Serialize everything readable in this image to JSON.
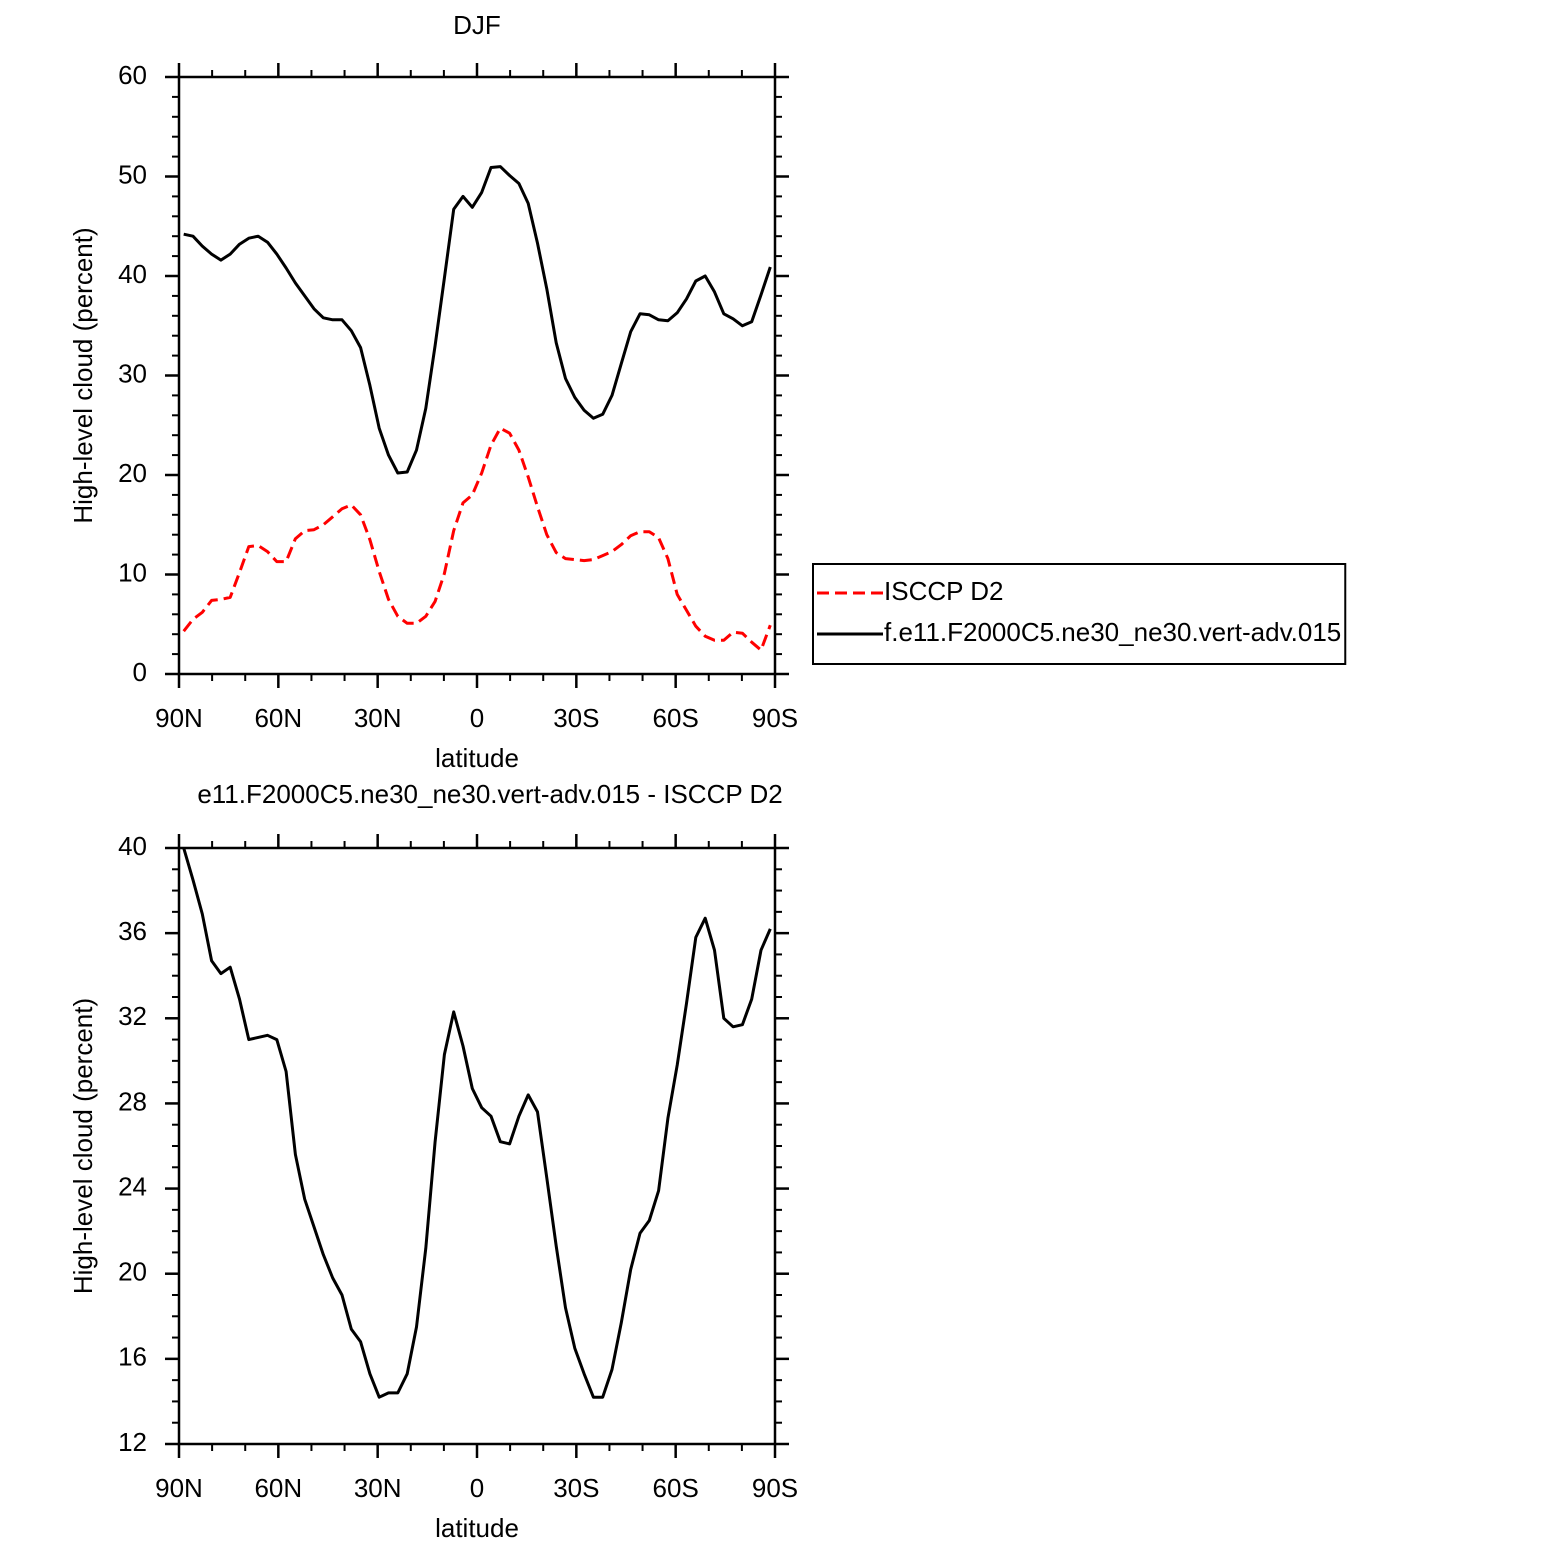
{
  "chart_data": [
    {
      "type": "line",
      "title": "DJF",
      "xlabel": "latitude",
      "ylabel": "High-level cloud (percent)",
      "x": [
        88.59,
        85.78,
        82.97,
        80.16,
        77.34,
        74.53,
        71.72,
        68.91,
        66.09,
        63.28,
        60.47,
        57.66,
        54.84,
        52.03,
        49.22,
        46.41,
        43.59,
        40.78,
        37.97,
        35.16,
        32.34,
        29.53,
        26.72,
        23.91,
        21.09,
        18.28,
        15.47,
        12.66,
        9.84,
        7.03,
        4.22,
        1.41,
        -1.41,
        -4.22,
        -7.03,
        -9.84,
        -12.66,
        -15.47,
        -18.28,
        -21.09,
        -23.91,
        -26.72,
        -29.53,
        -32.34,
        -35.16,
        -37.97,
        -40.78,
        -43.59,
        -46.41,
        -49.22,
        -52.03,
        -54.84,
        -57.66,
        -60.47,
        -63.28,
        -66.09,
        -68.91,
        -71.72,
        -74.53,
        -77.34,
        -80.16,
        -82.97,
        -85.78,
        -88.59
      ],
      "series": [
        {
          "name": "ISCCP D2",
          "color": "#ff0000",
          "dashed": true,
          "values": [
            4.3,
            5.5,
            6.2,
            7.4,
            7.5,
            7.7,
            10.2,
            12.8,
            12.9,
            12.3,
            11.3,
            11.3,
            13.6,
            14.4,
            14.5,
            15.0,
            15.8,
            16.6,
            17.0,
            16.0,
            13.5,
            10.3,
            7.5,
            5.8,
            5.1,
            5.1,
            5.8,
            7.3,
            10.1,
            14.4,
            17.2,
            18.0,
            20.2,
            23.0,
            24.7,
            24.2,
            22.5,
            19.8,
            16.8,
            14.0,
            12.2,
            11.6,
            11.5,
            11.4,
            11.5,
            11.9,
            12.3,
            13.0,
            13.9,
            14.3,
            14.3,
            13.7,
            11.6,
            8.0,
            6.4,
            4.8,
            3.8,
            3.4,
            3.4,
            4.2,
            4.1,
            3.2,
            2.4,
            4.9
          ]
        },
        {
          "name": "f.e11.F2000C5.ne30_ne30.vert-adv.015",
          "color": "#000000",
          "dashed": false,
          "values": [
            44.2,
            44.0,
            43.0,
            42.2,
            41.6,
            42.2,
            43.2,
            43.8,
            44.0,
            43.4,
            42.2,
            40.8,
            39.3,
            38.0,
            36.7,
            35.8,
            35.6,
            35.6,
            34.5,
            32.8,
            29.0,
            24.7,
            22.0,
            20.2,
            20.3,
            22.5,
            26.7,
            33.0,
            39.8,
            46.7,
            48.0,
            46.9,
            48.4,
            50.9,
            51.0,
            50.1,
            49.3,
            47.3,
            43.3,
            38.7,
            33.3,
            29.7,
            27.8,
            26.5,
            25.7,
            26.1,
            28.0,
            31.2,
            34.4,
            36.2,
            36.1,
            35.6,
            35.5,
            36.3,
            37.7,
            39.5,
            40.0,
            38.4,
            36.2,
            35.7,
            35.0,
            35.4,
            38.1,
            40.9
          ]
        }
      ],
      "xlim": [
        90,
        -90
      ],
      "xticks": [
        {
          "value": 90,
          "label": "90N"
        },
        {
          "value": 60,
          "label": "60N"
        },
        {
          "value": 30,
          "label": "30N"
        },
        0,
        {
          "value": -30,
          "label": "30S"
        },
        {
          "value": -60,
          "label": "60S"
        },
        {
          "value": -90,
          "label": "90S"
        }
      ],
      "ylim": [
        0,
        60
      ],
      "yticks": [
        0,
        10,
        20,
        30,
        40,
        50,
        60
      ],
      "x_minor_divisions": 3,
      "y_minor_divisions": 5,
      "legend": "right"
    },
    {
      "type": "line",
      "title": "e11.F2000C5.ne30_ne30.vert-adv.015 - ISCCP D2",
      "xlabel": "latitude",
      "ylabel": "High-level cloud (percent)",
      "x": [
        88.59,
        85.78,
        82.97,
        80.16,
        77.34,
        74.53,
        71.72,
        68.91,
        66.09,
        63.28,
        60.47,
        57.66,
        54.84,
        52.03,
        49.22,
        46.41,
        43.59,
        40.78,
        37.97,
        35.16,
        32.34,
        29.53,
        26.72,
        23.91,
        21.09,
        18.28,
        15.47,
        12.66,
        9.84,
        7.03,
        4.22,
        1.41,
        -1.41,
        -4.22,
        -7.03,
        -9.84,
        -12.66,
        -15.47,
        -18.28,
        -21.09,
        -23.91,
        -26.72,
        -29.53,
        -32.34,
        -35.16,
        -37.97,
        -40.78,
        -43.59,
        -46.41,
        -49.22,
        -52.03,
        -54.84,
        -57.66,
        -60.47,
        -63.28,
        -66.09,
        -68.91,
        -71.72,
        -74.53,
        -77.34,
        -80.16,
        -82.97,
        -85.78,
        -88.59
      ],
      "series": [
        {
          "color": "#000000",
          "dashed": false,
          "values": [
            40.0,
            38.5,
            36.9,
            34.7,
            34.1,
            34.4,
            32.9,
            31.0,
            31.1,
            31.2,
            31.0,
            29.5,
            25.6,
            23.5,
            22.2,
            20.9,
            19.8,
            19.0,
            17.4,
            16.8,
            15.3,
            14.2,
            14.4,
            14.4,
            15.3,
            17.5,
            21.2,
            26.2,
            30.3,
            32.3,
            30.7,
            28.7,
            27.8,
            27.4,
            26.2,
            26.1,
            27.4,
            28.4,
            27.6,
            24.5,
            21.3,
            18.4,
            16.5,
            15.3,
            14.2,
            14.2,
            15.5,
            17.7,
            20.2,
            21.9,
            22.5,
            23.9,
            27.3,
            29.8,
            32.7,
            35.8,
            36.7,
            35.2,
            32.0,
            31.6,
            31.7,
            32.9,
            35.2,
            36.2
          ]
        }
      ],
      "xlim": [
        90,
        -90
      ],
      "xticks": [
        {
          "value": 90,
          "label": "90N"
        },
        {
          "value": 60,
          "label": "60N"
        },
        {
          "value": 30,
          "label": "30N"
        },
        0,
        {
          "value": -30,
          "label": "30S"
        },
        {
          "value": -60,
          "label": "60S"
        },
        {
          "value": -90,
          "label": "90S"
        }
      ],
      "ylim": [
        12,
        40
      ],
      "yticks": [
        12,
        16,
        20,
        24,
        28,
        32,
        36,
        40
      ],
      "x_minor_divisions": 3,
      "y_minor_divisions": 4
    }
  ]
}
